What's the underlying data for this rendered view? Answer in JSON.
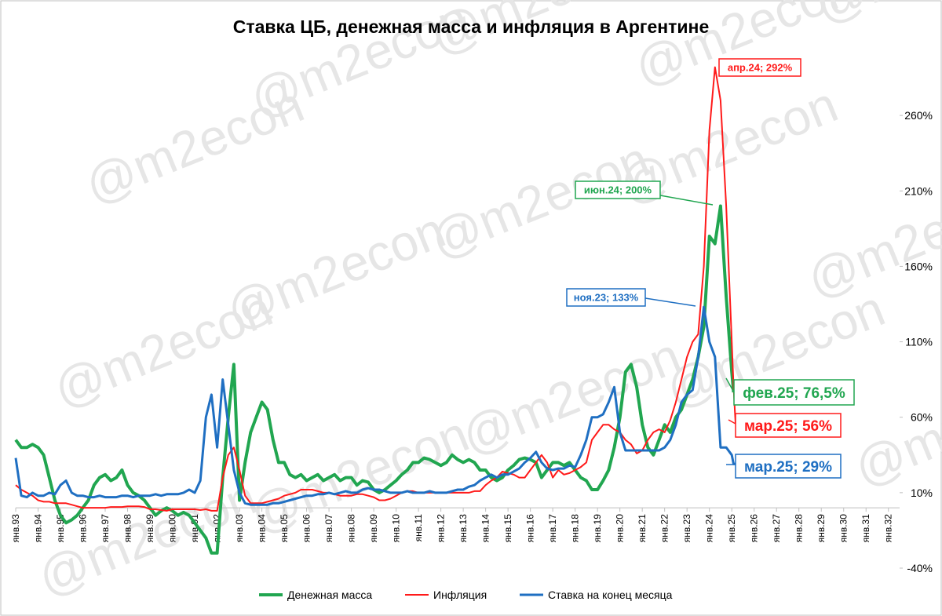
{
  "chart_data": {
    "type": "line",
    "title": "Ставка ЦБ, денежная масса и инфляция в Аргентине",
    "watermark": "@m2econ",
    "x": [
      1993,
      1993.25,
      1993.5,
      1993.75,
      1994,
      1994.25,
      1994.5,
      1994.75,
      1995,
      1995.25,
      1995.5,
      1995.75,
      1996,
      1996.25,
      1996.5,
      1996.75,
      1997,
      1997.25,
      1997.5,
      1997.75,
      1998,
      1998.25,
      1998.5,
      1998.75,
      1999,
      1999.25,
      1999.5,
      1999.75,
      2000,
      2000.25,
      2000.5,
      2000.75,
      2001,
      2001.25,
      2001.5,
      2001.75,
      2002,
      2002.25,
      2002.5,
      2002.75,
      2003,
      2003.25,
      2003.5,
      2003.75,
      2004,
      2004.25,
      2004.5,
      2004.75,
      2005,
      2005.25,
      2005.5,
      2005.75,
      2006,
      2006.25,
      2006.5,
      2006.75,
      2007,
      2007.25,
      2007.5,
      2007.75,
      2008,
      2008.25,
      2008.5,
      2008.75,
      2009,
      2009.25,
      2009.5,
      2009.75,
      2010,
      2010.25,
      2010.5,
      2010.75,
      2011,
      2011.25,
      2011.5,
      2011.75,
      2012,
      2012.25,
      2012.5,
      2012.75,
      2013,
      2013.25,
      2013.5,
      2013.75,
      2014,
      2014.25,
      2014.5,
      2014.75,
      2015,
      2015.25,
      2015.5,
      2015.75,
      2016,
      2016.25,
      2016.5,
      2016.75,
      2017,
      2017.25,
      2017.5,
      2017.75,
      2018,
      2018.25,
      2018.5,
      2018.75,
      2019,
      2019.25,
      2019.5,
      2019.75,
      2020,
      2020.25,
      2020.5,
      2020.75,
      2021,
      2021.25,
      2021.5,
      2021.75,
      2022,
      2022.25,
      2022.5,
      2022.75,
      2023,
      2023.25,
      2023.5,
      2023.75,
      2024,
      2024.25,
      2024.5,
      2024.75,
      2025,
      2025.08,
      2025.17
    ],
    "series": [
      {
        "name": "Денежная масса",
        "color": "#21a650",
        "values": [
          45,
          40,
          40,
          42,
          40,
          35,
          20,
          5,
          -5,
          -10,
          -8,
          -5,
          0,
          5,
          15,
          20,
          22,
          18,
          20,
          25,
          15,
          10,
          8,
          5,
          0,
          -5,
          -2,
          0,
          -2,
          -5,
          -3,
          -5,
          -10,
          -15,
          -20,
          -30,
          -30,
          20,
          60,
          95,
          5,
          30,
          50,
          60,
          70,
          65,
          45,
          30,
          30,
          22,
          20,
          22,
          18,
          20,
          22,
          18,
          20,
          22,
          18,
          20,
          20,
          15,
          18,
          17,
          12,
          10,
          12,
          15,
          18,
          22,
          25,
          30,
          30,
          33,
          32,
          30,
          28,
          30,
          35,
          32,
          30,
          32,
          30,
          25,
          25,
          20,
          18,
          20,
          25,
          28,
          32,
          33,
          32,
          30,
          20,
          25,
          30,
          30,
          28,
          30,
          25,
          20,
          18,
          12,
          12,
          18,
          25,
          40,
          60,
          90,
          95,
          80,
          55,
          40,
          35,
          45,
          55,
          50,
          60,
          65,
          75,
          85,
          100,
          120,
          180,
          175,
          200,
          140,
          90,
          76.5,
          null
        ]
      },
      {
        "name": "Инфляция",
        "color": "#ff1a1a",
        "values": [
          15,
          12,
          10,
          8,
          5,
          4,
          4,
          3,
          3,
          3,
          2,
          1,
          0,
          0,
          0,
          0,
          0,
          0.5,
          0.5,
          0.5,
          1,
          1,
          1,
          0.5,
          -1,
          -1,
          -1.5,
          -2,
          -1,
          -1,
          -1,
          -1,
          -1,
          -1.5,
          -1,
          -2,
          -2,
          20,
          35,
          40,
          25,
          8,
          3,
          3,
          3,
          4,
          5,
          6,
          8,
          9,
          10,
          12,
          12,
          12,
          11,
          10,
          10,
          9,
          8,
          8,
          8,
          9,
          9,
          8,
          7,
          5,
          5,
          6,
          8,
          10,
          11,
          11,
          10,
          10,
          10,
          10,
          10,
          10,
          10,
          10,
          10,
          10,
          11,
          11,
          15,
          18,
          20,
          24,
          23,
          22,
          20,
          20,
          25,
          30,
          35,
          30,
          20,
          25,
          22,
          23,
          25,
          27,
          30,
          45,
          50,
          55,
          55,
          52,
          50,
          45,
          42,
          36,
          38,
          45,
          50,
          52,
          50,
          58,
          70,
          85,
          100,
          110,
          115,
          160,
          250,
          292,
          270,
          200,
          110,
          80,
          56
        ]
      },
      {
        "name": "Ставка на конец месяца",
        "color": "#1f6fc2",
        "values": [
          33,
          8,
          7,
          10,
          8,
          8,
          10,
          9,
          15,
          18,
          10,
          8,
          8,
          7,
          7,
          8,
          7,
          7,
          7,
          8,
          8,
          7,
          8,
          8,
          8,
          9,
          8,
          9,
          9,
          9,
          10,
          12,
          10,
          18,
          60,
          75,
          40,
          85,
          55,
          25,
          10,
          3,
          2,
          2,
          2,
          2,
          3,
          3,
          4,
          5,
          6,
          7,
          8,
          8,
          9,
          9,
          10,
          9,
          10,
          11,
          10,
          10,
          12,
          13,
          12,
          12,
          11,
          10,
          10,
          10,
          11,
          10,
          10,
          10,
          11,
          10,
          10,
          10,
          11,
          12,
          12,
          14,
          15,
          18,
          20,
          22,
          20,
          22,
          22,
          24,
          26,
          30,
          33,
          37,
          30,
          26,
          25,
          26,
          26,
          28,
          27,
          35,
          45,
          60,
          60,
          62,
          70,
          80,
          50,
          38,
          38,
          38,
          38,
          38,
          38,
          38,
          40,
          45,
          55,
          70,
          75,
          78,
          100,
          133,
          110,
          100,
          40,
          40,
          35,
          29,
          29
        ]
      }
    ],
    "annotations": [
      {
        "text": "апр.24; 292%",
        "color": "#ff1a1a"
      },
      {
        "text": "июн.24; 200%",
        "color": "#21a650"
      },
      {
        "text": "ноя.23; 133%",
        "color": "#1f6fc2"
      },
      {
        "text": "фев.25; 76,5%",
        "color": "#21a650"
      },
      {
        "text": "мар.25; 56%",
        "color": "#ff1a1a"
      },
      {
        "text": "мар.25; 29%",
        "color": "#1f6fc2"
      }
    ],
    "xlim": [
      1993,
      2032.5
    ],
    "xticks": [
      {
        "value": 1993,
        "label": "янв.93"
      },
      {
        "value": 1994,
        "label": "янв.94"
      },
      {
        "value": 1995,
        "label": "янв.95"
      },
      {
        "value": 1996,
        "label": "янв.96"
      },
      {
        "value": 1997,
        "label": "янв.97"
      },
      {
        "value": 1998,
        "label": "янв.98"
      },
      {
        "value": 1999,
        "label": "янв.99"
      },
      {
        "value": 2000,
        "label": "янв.00"
      },
      {
        "value": 2001,
        "label": "янв.01"
      },
      {
        "value": 2002,
        "label": "янв.02"
      },
      {
        "value": 2003,
        "label": "янв.03"
      },
      {
        "value": 2004,
        "label": "янв.04"
      },
      {
        "value": 2005,
        "label": "янв.05"
      },
      {
        "value": 2006,
        "label": "янв.06"
      },
      {
        "value": 2007,
        "label": "янв.07"
      },
      {
        "value": 2008,
        "label": "янв.08"
      },
      {
        "value": 2009,
        "label": "янв.09"
      },
      {
        "value": 2010,
        "label": "янв.10"
      },
      {
        "value": 2011,
        "label": "янв.11"
      },
      {
        "value": 2012,
        "label": "янв.12"
      },
      {
        "value": 2013,
        "label": "янв.13"
      },
      {
        "value": 2014,
        "label": "янв.14"
      },
      {
        "value": 2015,
        "label": "янв.15"
      },
      {
        "value": 2016,
        "label": "янв.16"
      },
      {
        "value": 2017,
        "label": "янв.17"
      },
      {
        "value": 2018,
        "label": "янв.18"
      },
      {
        "value": 2019,
        "label": "янв.19"
      },
      {
        "value": 2020,
        "label": "янв.20"
      },
      {
        "value": 2021,
        "label": "янв.21"
      },
      {
        "value": 2022,
        "label": "янв.22"
      },
      {
        "value": 2023,
        "label": "янв.23"
      },
      {
        "value": 2024,
        "label": "янв.24"
      },
      {
        "value": 2025,
        "label": "янв.25"
      },
      {
        "value": 2026,
        "label": "янв.26"
      },
      {
        "value": 2027,
        "label": "янв.27"
      },
      {
        "value": 2028,
        "label": "янв.28"
      },
      {
        "value": 2029,
        "label": "янв.29"
      },
      {
        "value": 2030,
        "label": "янв.30"
      },
      {
        "value": 2031,
        "label": "янв.31"
      },
      {
        "value": 2032,
        "label": "янв.32"
      }
    ],
    "ylim": [
      -40,
      310
    ],
    "yticks": [
      {
        "value": -40,
        "label": "-40%"
      },
      {
        "value": 10,
        "label": "10%"
      },
      {
        "value": 60,
        "label": "60%"
      },
      {
        "value": 110,
        "label": "110%"
      },
      {
        "value": 160,
        "label": "160%"
      },
      {
        "value": 210,
        "label": "210%"
      },
      {
        "value": 260,
        "label": "260%"
      }
    ],
    "grid": false
  }
}
